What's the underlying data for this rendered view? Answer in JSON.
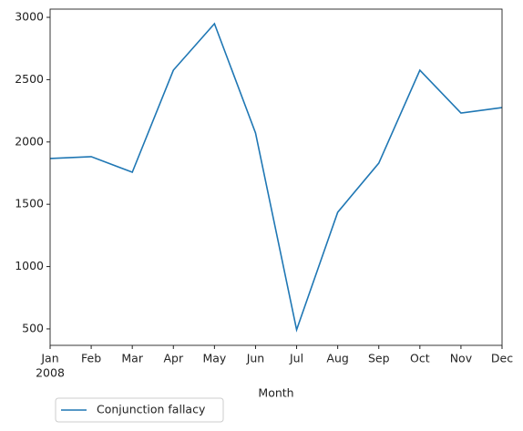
{
  "chart_data": {
    "type": "line",
    "x_label": "Month",
    "categories": [
      "Jan",
      "Feb",
      "Mar",
      "Apr",
      "May",
      "Jun",
      "Jul",
      "Aug",
      "Sep",
      "Oct",
      "Nov",
      "Dec"
    ],
    "year_label": "2008",
    "series": [
      {
        "name": "Conjunction fallacy",
        "color": "#1f77b4",
        "values": [
          1867,
          1882,
          1757,
          2576,
          2949,
          2072,
          493,
          1436,
          1830,
          2576,
          2232,
          2276
        ]
      }
    ],
    "ylim": [
      368,
      3066
    ],
    "yticks": [
      500,
      1000,
      1500,
      2000,
      2500,
      3000
    ],
    "legend": "bottom-left"
  }
}
